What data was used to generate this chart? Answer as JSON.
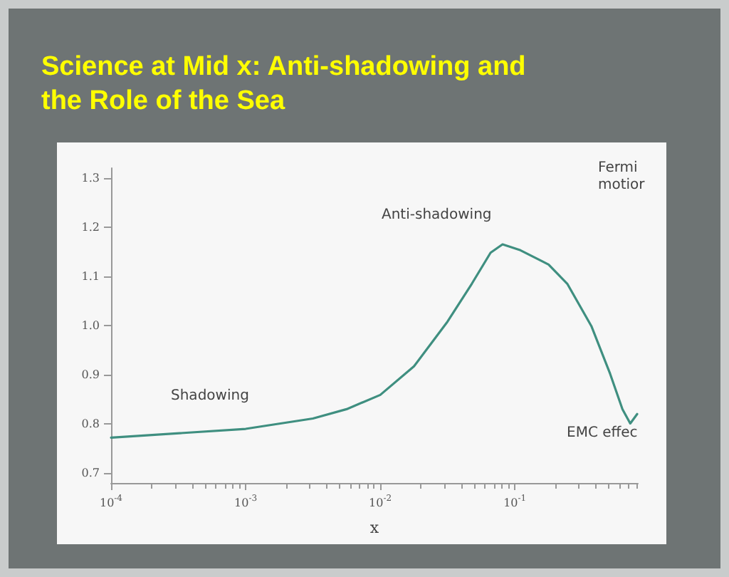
{
  "chart_data": {
    "type": "line",
    "title": "Science at Mid x: Anti-shadowing and the Role of the Sea",
    "xlabel": "x",
    "x": [
      0.0001,
      0.001,
      0.00316,
      0.00562,
      0.01,
      0.0178,
      0.0316,
      0.0479,
      0.066,
      0.081,
      0.11,
      0.178,
      0.245,
      0.37,
      0.51,
      0.63,
      0.72,
      0.81
    ],
    "series": [
      {
        "color": "#3f8f80",
        "values": [
          0.772,
          0.79,
          0.811,
          0.83,
          0.859,
          0.917,
          1.008,
          1.085,
          1.148,
          1.165,
          1.153,
          1.124,
          1.085,
          0.999,
          0.902,
          0.83,
          0.801,
          0.82
        ]
      }
    ],
    "log": "x",
    "xlim": [
      0.0001,
      0.82
    ],
    "xticks": [
      {
        "value": 0.0001,
        "label": "10$^{-4}$"
      },
      {
        "value": 0.001,
        "label": "10$^{-3}$"
      },
      {
        "value": 0.01,
        "label": "10$^{-2}$"
      },
      {
        "value": 0.1,
        "label": "10$^{-1}$"
      }
    ],
    "ylim": [
      0.68,
      1.32
    ],
    "yticks": [
      {
        "value": 0.7,
        "label": "0.7"
      },
      {
        "value": 0.8,
        "label": "0.8"
      },
      {
        "value": 0.9,
        "label": "0.9"
      },
      {
        "value": 1,
        "label": "1.0"
      },
      {
        "value": 1.1,
        "label": "1.1"
      },
      {
        "value": 1.2,
        "label": "1.2"
      },
      {
        "value": 1.3,
        "label": "1.3"
      }
    ],
    "annotations": [
      "Shadowing",
      "Anti-shadowing",
      "Fermi\nmotior",
      "EMC effec"
    ],
    "grid": false,
    "marker": "none",
    "line_style": "solid"
  }
}
